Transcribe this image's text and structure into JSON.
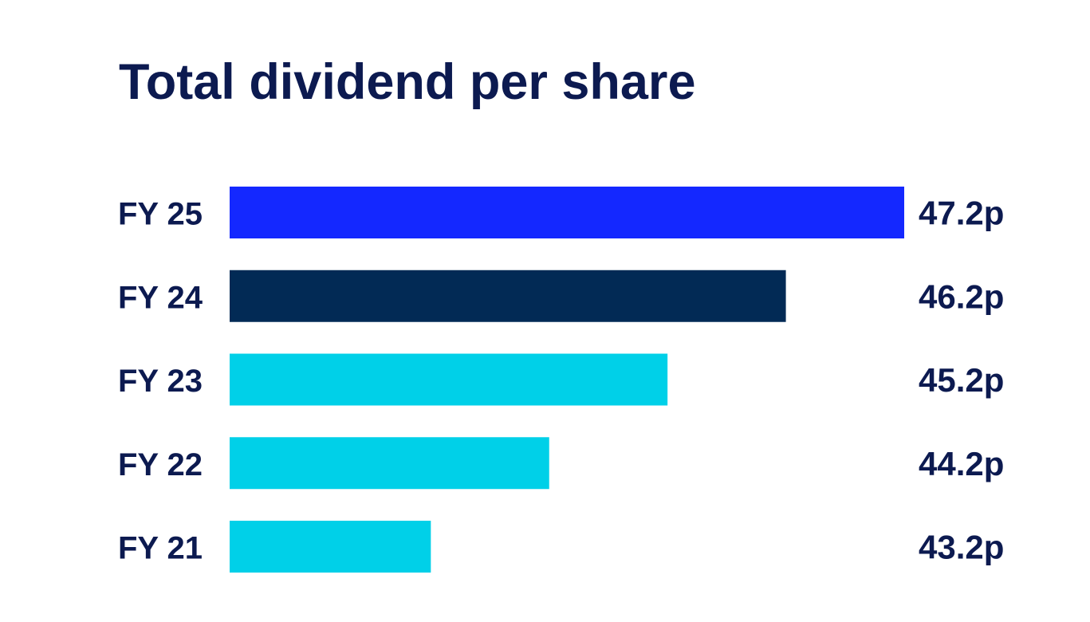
{
  "chart_data": {
    "type": "bar",
    "orientation": "horizontal",
    "title": "Total dividend per share",
    "categories": [
      "FY 25",
      "FY 24",
      "FY 23",
      "FY 22",
      "FY 21"
    ],
    "values": [
      47.2,
      46.2,
      45.2,
      44.2,
      43.2
    ],
    "value_labels": [
      "47.2p",
      "46.2p",
      "45.2p",
      "44.2p",
      "43.2p"
    ],
    "bar_colors": [
      "#1428ff",
      "#022a55",
      "#00d0e8",
      "#00d0e8",
      "#00d0e8"
    ],
    "xlim": [
      41.5,
      47.2
    ],
    "grid": false,
    "text_color": "#0c1a50"
  }
}
